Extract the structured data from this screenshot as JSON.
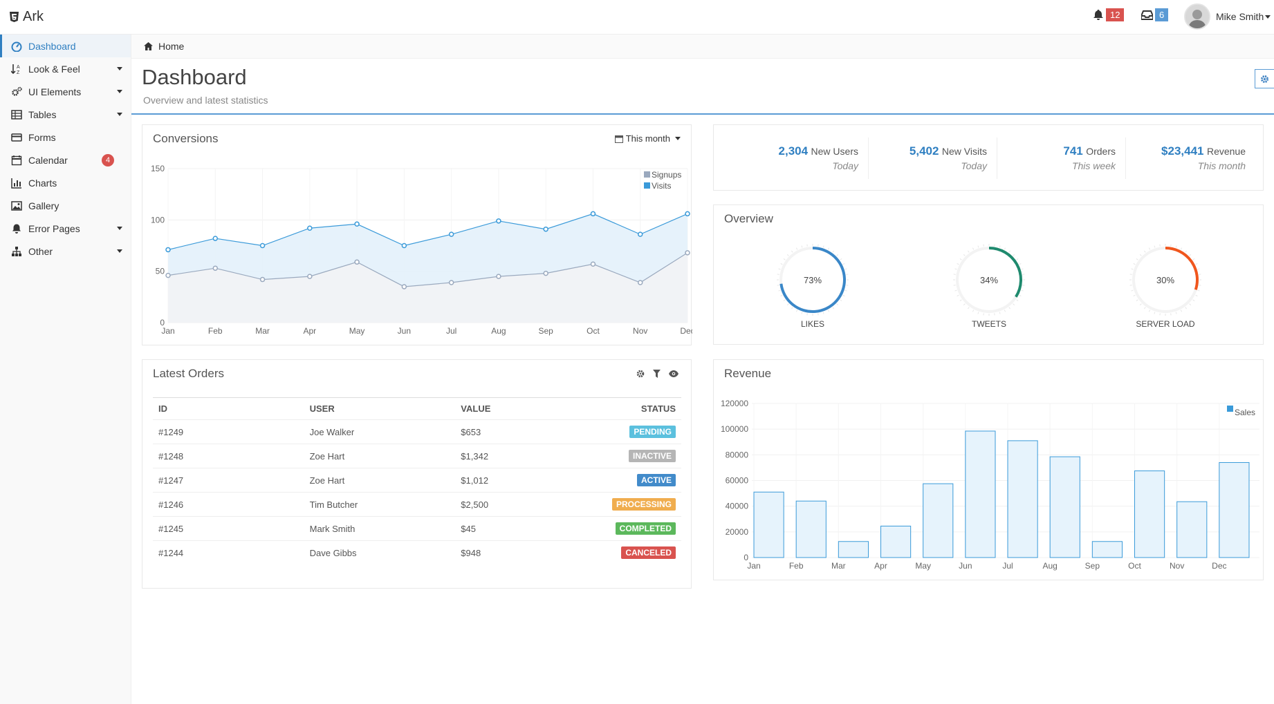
{
  "app": {
    "brand": "Ark",
    "icon": "html5-icon"
  },
  "topbar": {
    "notifications": {
      "icon": "bell-icon",
      "count": "12",
      "color": "#d9534f"
    },
    "inbox": {
      "icon": "inbox-icon",
      "count": "6",
      "color": "#5b9bd5"
    },
    "user": {
      "name": "Mike Smith"
    }
  },
  "sidebar": {
    "items": [
      {
        "label": "Dashboard",
        "icon": "dashboard-icon",
        "active": true
      },
      {
        "label": "Look & Feel",
        "icon": "sort-alpha-icon",
        "caret": true
      },
      {
        "label": "UI Elements",
        "icon": "cogs-icon",
        "caret": true
      },
      {
        "label": "Tables",
        "icon": "table-icon",
        "caret": true
      },
      {
        "label": "Forms",
        "icon": "credit-card-icon"
      },
      {
        "label": "Calendar",
        "icon": "calendar-icon",
        "badge": "4"
      },
      {
        "label": "Charts",
        "icon": "bar-chart-icon"
      },
      {
        "label": "Gallery",
        "icon": "picture-icon"
      },
      {
        "label": "Error Pages",
        "icon": "bell-icon",
        "caret": true
      },
      {
        "label": "Other",
        "icon": "sitemap-icon",
        "caret": true
      }
    ]
  },
  "breadcrumb": {
    "home": "Home"
  },
  "page": {
    "title": "Dashboard",
    "subtitle": "Overview and latest statistics"
  },
  "conversions": {
    "title": "Conversions",
    "range": "This month"
  },
  "stats": [
    {
      "value": "2,304",
      "label": "New Users",
      "sub": "Today"
    },
    {
      "value": "5,402",
      "label": "New Visits",
      "sub": "Today"
    },
    {
      "value": "741",
      "label": "Orders",
      "sub": "This week"
    },
    {
      "value": "$23,441",
      "label": "Revenue",
      "sub": "This month"
    }
  ],
  "overview": {
    "title": "Overview",
    "gauges": [
      {
        "value": 73,
        "text": "73%",
        "label": "LIKES",
        "color": "#3a87c8"
      },
      {
        "value": 34,
        "text": "34%",
        "label": "TWEETS",
        "color": "#1f8a6e"
      },
      {
        "value": 30,
        "text": "30%",
        "label": "SERVER LOAD",
        "color": "#f0561d"
      }
    ]
  },
  "orders": {
    "title": "Latest Orders",
    "headers": [
      "ID",
      "USER",
      "VALUE",
      "STATUS"
    ],
    "rows": [
      {
        "id": "#1249",
        "user": "Joe Walker",
        "value": "$653",
        "status": "PENDING",
        "color": "#5bc0de"
      },
      {
        "id": "#1248",
        "user": "Zoe Hart",
        "value": "$1,342",
        "status": "INACTIVE",
        "color": "#b5b5b5"
      },
      {
        "id": "#1247",
        "user": "Zoe Hart",
        "value": "$1,012",
        "status": "ACTIVE",
        "color": "#428bca"
      },
      {
        "id": "#1246",
        "user": "Tim Butcher",
        "value": "$2,500",
        "status": "PROCESSING",
        "color": "#f0ad4e"
      },
      {
        "id": "#1245",
        "user": "Mark Smith",
        "value": "$45",
        "status": "COMPLETED",
        "color": "#5cb85c"
      },
      {
        "id": "#1244",
        "user": "Dave Gibbs",
        "value": "$948",
        "status": "CANCELED",
        "color": "#d9534f"
      }
    ]
  },
  "revenue": {
    "title": "Revenue"
  },
  "chart_data": [
    {
      "type": "area",
      "categories": [
        "Jan",
        "Feb",
        "Mar",
        "Apr",
        "May",
        "Jun",
        "Jul",
        "Aug",
        "Sep",
        "Oct",
        "Nov",
        "Dec"
      ],
      "series": [
        {
          "name": "Signups",
          "values": [
            46,
            53,
            42,
            45,
            59,
            35,
            39,
            45,
            48,
            57,
            39,
            68
          ],
          "color": "#9aa9be"
        },
        {
          "name": "Visits",
          "values": [
            71,
            82,
            75,
            92,
            96,
            75,
            86,
            99,
            91,
            106,
            86,
            106
          ],
          "color": "#3a9ad9"
        }
      ],
      "yticks": [
        0,
        50,
        100,
        150
      ],
      "ylim": [
        0,
        150
      ],
      "legend": "top-right",
      "grid": true
    },
    {
      "type": "bar",
      "categories": [
        "Jan",
        "Feb",
        "Mar",
        "Apr",
        "May",
        "Jun",
        "Jul",
        "Aug",
        "Sep",
        "Oct",
        "Nov",
        "Dec"
      ],
      "series": [
        {
          "name": "Sales",
          "values": [
            51000,
            44000,
            12500,
            24500,
            57500,
            98500,
            91000,
            78500,
            12500,
            67500,
            43500,
            74000
          ],
          "color": "#3a9ad9"
        }
      ],
      "yticks": [
        0,
        20000,
        40000,
        60000,
        80000,
        100000,
        120000
      ],
      "ylim": [
        0,
        120000
      ],
      "legend": "top-right",
      "grid": true
    }
  ]
}
